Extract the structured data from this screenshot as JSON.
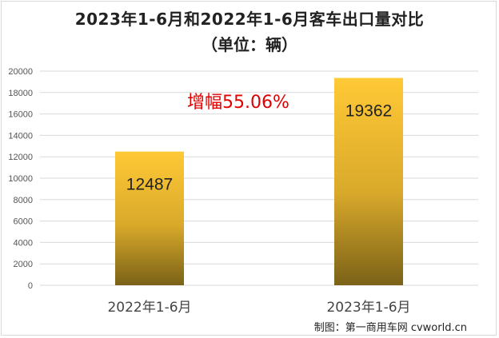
{
  "chart_data": {
    "type": "bar",
    "title": "2023年1-6月和2022年1-6月客车出口量对比",
    "subtitle": "（单位：辆）",
    "categories": [
      "2022年1-6月",
      "2023年1-6月"
    ],
    "values": [
      12487,
      19362
    ],
    "data_labels": [
      "12487",
      "19362"
    ],
    "yticks": [
      0,
      2000,
      4000,
      6000,
      8000,
      10000,
      12000,
      14000,
      16000,
      18000,
      20000
    ],
    "ylim": [
      0,
      20000
    ],
    "grid": true,
    "annotation": "增幅55.06%",
    "colors": {
      "bar_top": "#FFC936",
      "bar_bottom": "#7A6218",
      "grid": "#d9d9d9",
      "annotation": "#e00000"
    }
  },
  "credit": "制图：第一商用车网 cvworld.cn"
}
